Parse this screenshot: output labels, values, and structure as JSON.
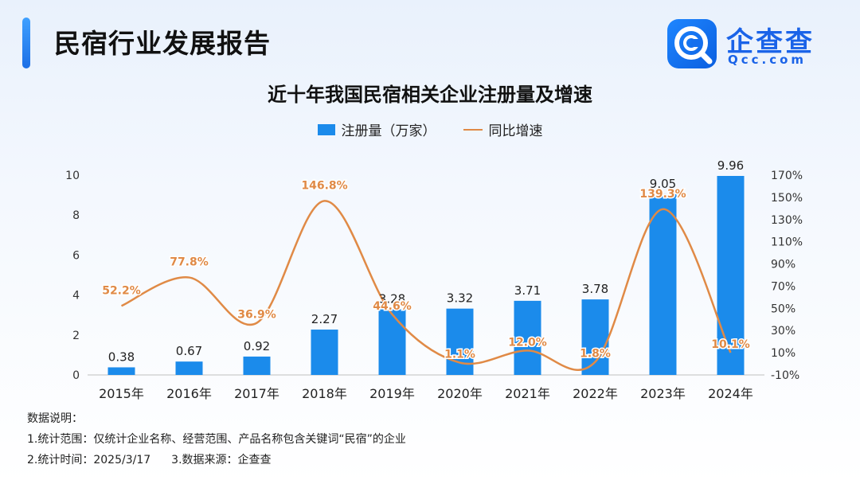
{
  "header": {
    "title": "民宿行业发展报告",
    "brand_name": "企查查",
    "brand_domain": "Qcc.com"
  },
  "chart_data": {
    "type": "bar",
    "title": "近十年我国民宿相关企业注册量及增速",
    "categories": [
      "2015年",
      "2016年",
      "2017年",
      "2018年",
      "2019年",
      "2020年",
      "2021年",
      "2022年",
      "2023年",
      "2024年"
    ],
    "series": [
      {
        "name": "注册量（万家）",
        "type": "bar",
        "axis": "left",
        "values": [
          0.38,
          0.67,
          0.92,
          2.27,
          3.28,
          3.32,
          3.71,
          3.78,
          9.05,
          9.96
        ],
        "labels": [
          "0.38",
          "0.67",
          "0.92",
          "2.27",
          "3.28",
          "3.32",
          "3.71",
          "3.78",
          "9.05",
          "9.96"
        ],
        "color": "#1b8beb"
      },
      {
        "name": "同比增速",
        "type": "line",
        "axis": "right",
        "smooth": true,
        "values": [
          52.2,
          77.8,
          36.9,
          146.8,
          44.6,
          1.1,
          12.0,
          1.8,
          139.3,
          10.1
        ],
        "labels": [
          "52.2%",
          "77.8%",
          "36.9%",
          "146.8%",
          "44.6%",
          "1.1%",
          "12.0%",
          "1.8%",
          "139.3%",
          "10.1%"
        ],
        "color": "#e08a46"
      }
    ],
    "y_left": {
      "range": [
        0,
        10
      ],
      "ticks": [
        "0",
        "2",
        "4",
        "6",
        "8",
        "10"
      ]
    },
    "y_right": {
      "range": [
        -10,
        170
      ],
      "ticks": [
        "-10%",
        "10%",
        "30%",
        "50%",
        "70%",
        "90%",
        "110%",
        "130%",
        "150%",
        "170%"
      ]
    },
    "grid": false,
    "legend": "top-center"
  },
  "notes": {
    "heading": "数据说明：",
    "line1": "1.统计范围：仅统计企业名称、经营范围、产品名称包含关键词“民宿”的企业",
    "line2a": "2.统计时间：2025/3/17",
    "line2b": "3.数据来源：企查查"
  }
}
